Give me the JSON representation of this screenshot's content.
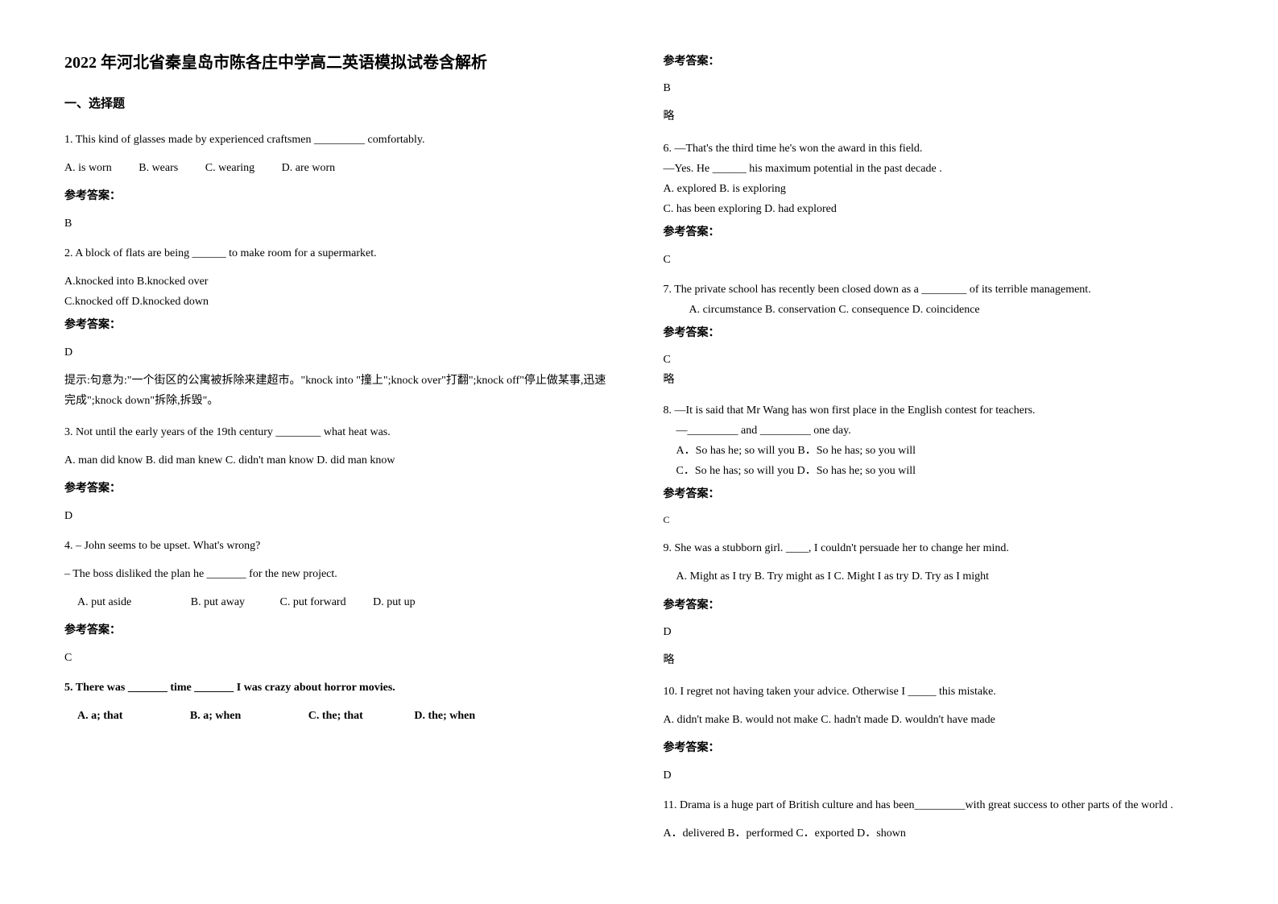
{
  "title": "2022 年河北省秦皇岛市陈各庄中学高二英语模拟试卷含解析",
  "section1": "一、选择题",
  "q1": {
    "text": "1. This kind of glasses made by experienced craftsmen _________ comfortably.",
    "optA": "A. is worn",
    "optB": "B. wears",
    "optC": "C. wearing",
    "optD": "D. are worn",
    "answerLabel": "参考答案：",
    "answer": "B"
  },
  "q2": {
    "text": "2. A block of flats are being ______ to make room for a supermarket.",
    "line1": "A.knocked into   B.knocked over",
    "line2": "C.knocked off    D.knocked down",
    "answerLabel": "参考答案：",
    "answer": "D",
    "explanation": "提示:句意为:\"一个街区的公寓被拆除来建超市。\"knock into \"撞上\";knock over\"打翻\";knock off\"停止做某事,迅速完成\";knock down\"拆除,拆毁\"。"
  },
  "q3": {
    "text": "3. Not until the early years of the 19th century ________ what heat was.",
    "options": "A. man did know   B. did man knew   C. didn't man know   D. did man know",
    "answerLabel": "参考答案：",
    "answer": "D"
  },
  "q4": {
    "text": "4.  – John seems to be upset. What's wrong?",
    "text2": "  – The boss disliked the plan he _______ for the new project.",
    "optA": "A. put aside",
    "optB": "B. put away",
    "optC": "C. put forward",
    "optD": "D. put up",
    "answerLabel": "参考答案：",
    "answer": "C"
  },
  "q5": {
    "text": "5. There was _______ time _______ I was crazy about horror movies.",
    "optA": "A. a; that",
    "optB": "B. a; when",
    "optC": "C. the; that",
    "optD": "D. the; when",
    "answerLabel": "参考答案：",
    "answer": "B",
    "explanation": "略"
  },
  "q6": {
    "text": "6. —That's the third time he's won the award in this field.",
    "text2": "—Yes. He ______ his maximum potential in the past decade .",
    "line1": "A. explored        B. is exploring",
    "line2": "C. has been exploring   D. had explored",
    "answerLabel": "参考答案：",
    "answer": "C"
  },
  "q7": {
    "text": "7. The private school has recently been closed down as a ________ of its terrible management.",
    "options": "A. circumstance         B. conservation         C. consequence         D. coincidence",
    "answerLabel": "参考答案：",
    "answer": "C",
    "explanation": "略"
  },
  "q8": {
    "text": "8. —It is said that Mr Wang has won first place in the English contest for teachers.",
    "text2": "—_________ and _________ one day.",
    "line1": "A．So has he; so will you       B．So he has; so you will",
    "line2": "C．So he has; so will you       D．So has he; so you will",
    "answerLabel": "参考答案：",
    "answer": "C"
  },
  "q9": {
    "text": "9. She was a stubborn girl. ____, I couldn't persuade her to change her mind.",
    "options": "A. Might as I try    B. Try might as I    C. Might I as try    D. Try as I might",
    "answerLabel": "参考答案：",
    "answer": "D",
    "explanation": "略"
  },
  "q10": {
    "text": "10. I regret not having taken your advice. Otherwise I _____ this mistake.",
    "options": "A. didn't make     B. would not make    C. hadn't made    D. wouldn't have made",
    "answerLabel": "参考答案：",
    "answer": "D"
  },
  "q11": {
    "text": "11. Drama is a huge part of British culture and has been_________with great success to other parts of the world .",
    "options": "A．delivered     B．performed    C．exported      D．shown"
  }
}
